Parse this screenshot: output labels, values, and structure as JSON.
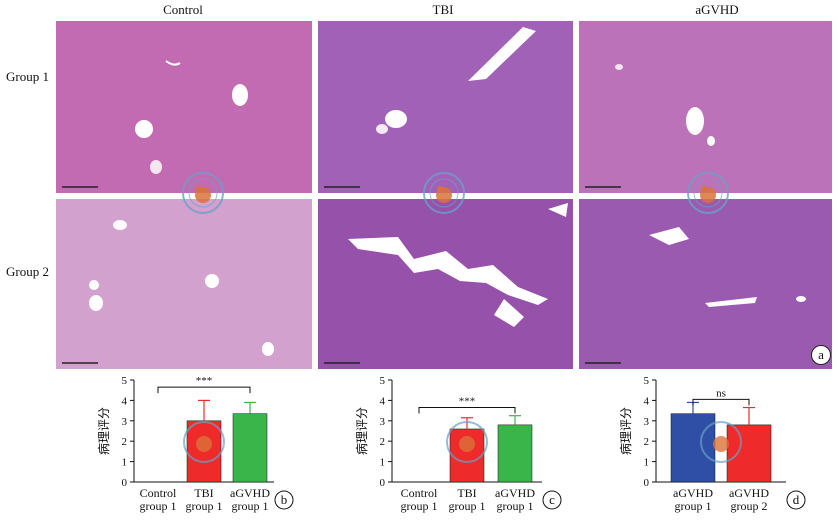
{
  "figure": {
    "columns": [
      "Control",
      "TBI",
      "aGVHD"
    ],
    "rows": [
      "Group 1",
      "Group 2"
    ],
    "panel_letters": {
      "a": "a",
      "b": "b",
      "c": "c",
      "d": "d"
    },
    "colors": {
      "tissue_g1": "#c46bb4",
      "tissue_g2": "#d7a6d0",
      "tissue_dense": "#9b62b3",
      "lumen": "#ffffff",
      "red": "#ee2a2a",
      "green": "#3ab54a",
      "blue": "#2f4fa6"
    }
  },
  "chart_data": [
    {
      "type": "bar",
      "panel": "b",
      "ylabel": "病理评分",
      "ylim": [
        0,
        5
      ],
      "yticks": [
        0,
        1,
        2,
        3,
        4,
        5
      ],
      "categories": [
        [
          "Control",
          "group 1"
        ],
        [
          "TBI",
          "group 1"
        ],
        [
          "aGVHD",
          "group 1"
        ]
      ],
      "values": [
        0,
        3.0,
        3.35
      ],
      "errors": [
        0,
        1.0,
        0.55
      ],
      "bar_colors": [
        "#ffffff",
        "#ee2a2a",
        "#3ab54a"
      ],
      "annotations": [
        {
          "from": 0,
          "to": 2,
          "text": "***",
          "y": 4.65
        }
      ]
    },
    {
      "type": "bar",
      "panel": "c",
      "ylabel": "病理评分",
      "ylim": [
        0,
        5
      ],
      "yticks": [
        0,
        1,
        2,
        3,
        4,
        5
      ],
      "categories": [
        [
          "Control",
          "group 1"
        ],
        [
          "TBI",
          "group 1"
        ],
        [
          "aGVHD",
          "group 1"
        ]
      ],
      "values": [
        0,
        2.6,
        2.8
      ],
      "errors": [
        0,
        0.55,
        0.45
      ],
      "bar_colors": [
        "#ffffff",
        "#ee2a2a",
        "#3ab54a"
      ],
      "annotations": [
        {
          "from": 0,
          "to": 2,
          "text": "***",
          "y": 3.65
        }
      ]
    },
    {
      "type": "bar",
      "panel": "d",
      "ylabel": "病理评分",
      "ylim": [
        0,
        5
      ],
      "yticks": [
        0,
        1,
        2,
        3,
        4,
        5
      ],
      "categories": [
        [
          "aGVHD",
          "group 1"
        ],
        [
          "aGVHD",
          "group 2"
        ]
      ],
      "values": [
        3.35,
        2.8
      ],
      "errors": [
        0.55,
        0.85
      ],
      "bar_colors": [
        "#2f4fa6",
        "#ee2a2a"
      ],
      "annotations": [
        {
          "from": 0,
          "to": 1,
          "text": "ns",
          "y": 4.05
        }
      ]
    }
  ]
}
